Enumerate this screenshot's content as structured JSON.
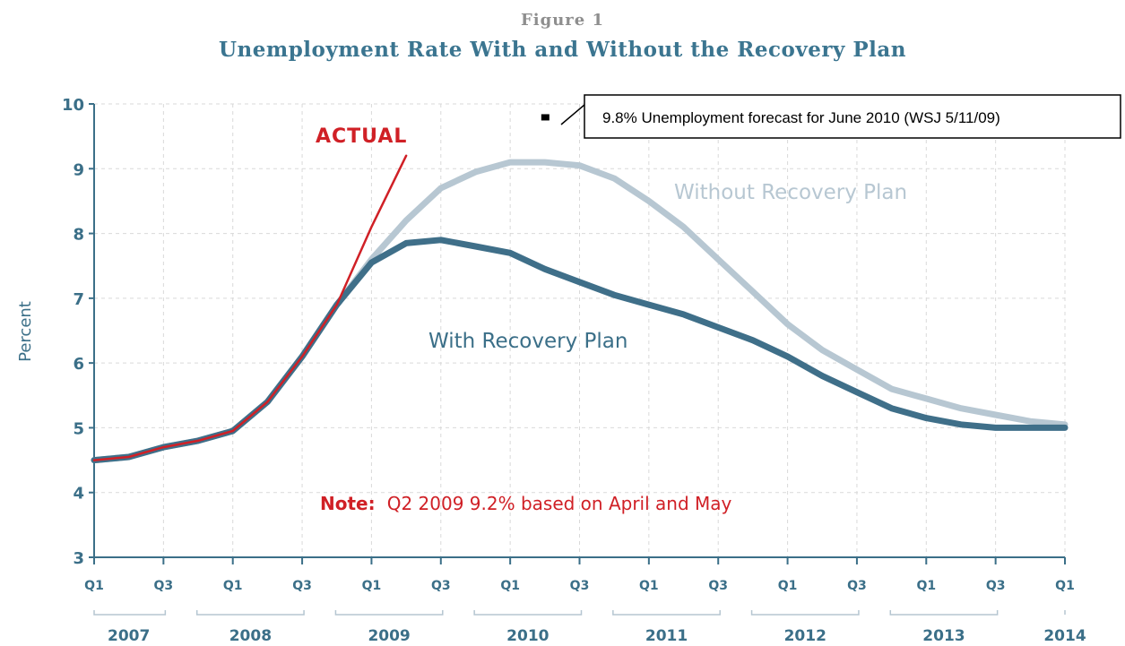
{
  "figure_label": "Figure 1",
  "chart_data": {
    "type": "line",
    "title": "Unemployment Rate With and Without the Recovery Plan",
    "ylabel": "Percent",
    "xlabel": "",
    "ylim": [
      3,
      10
    ],
    "yticks": [
      3,
      4,
      5,
      6,
      7,
      8,
      9,
      10
    ],
    "grid": true,
    "x_quarter_labels": [
      "Q1",
      "Q3",
      "Q1",
      "Q3",
      "Q1",
      "Q3",
      "Q1",
      "Q3",
      "Q1",
      "Q3",
      "Q1",
      "Q3",
      "Q1",
      "Q3",
      "Q1"
    ],
    "x_year_labels": [
      "2007",
      "2008",
      "2009",
      "2010",
      "2011",
      "2012",
      "2013",
      "2014"
    ],
    "series": [
      {
        "name": "Without Recovery Plan",
        "color": "#b7c7d2",
        "x": [
          2007.0,
          2007.25,
          2007.5,
          2007.75,
          2008.0,
          2008.25,
          2008.5,
          2008.75,
          2009.0,
          2009.25,
          2009.5,
          2009.75,
          2010.0,
          2010.25,
          2010.5,
          2010.75,
          2011.0,
          2011.25,
          2011.5,
          2011.75,
          2012.0,
          2012.25,
          2012.5,
          2012.75,
          2013.0,
          2013.25,
          2013.5,
          2013.75,
          2014.0
        ],
        "values": [
          4.5,
          4.55,
          4.7,
          4.8,
          4.95,
          5.4,
          6.1,
          6.9,
          7.6,
          8.2,
          8.7,
          8.95,
          9.1,
          9.1,
          9.05,
          8.85,
          8.5,
          8.1,
          7.6,
          7.1,
          6.6,
          6.2,
          5.9,
          5.6,
          5.45,
          5.3,
          5.2,
          5.1,
          5.05
        ]
      },
      {
        "name": "With Recovery Plan",
        "color": "#3f6f89",
        "x": [
          2007.0,
          2007.25,
          2007.5,
          2007.75,
          2008.0,
          2008.25,
          2008.5,
          2008.75,
          2009.0,
          2009.25,
          2009.5,
          2009.75,
          2010.0,
          2010.25,
          2010.5,
          2010.75,
          2011.0,
          2011.25,
          2011.5,
          2011.75,
          2012.0,
          2012.25,
          2012.5,
          2012.75,
          2013.0,
          2013.25,
          2013.5,
          2013.75,
          2014.0
        ],
        "values": [
          4.5,
          4.55,
          4.7,
          4.8,
          4.95,
          5.4,
          6.1,
          6.9,
          7.55,
          7.85,
          7.9,
          7.8,
          7.7,
          7.45,
          7.25,
          7.05,
          6.9,
          6.75,
          6.55,
          6.35,
          6.1,
          5.8,
          5.55,
          5.3,
          5.15,
          5.05,
          5.0,
          5.0,
          5.0
        ]
      },
      {
        "name": "ACTUAL",
        "color": "#d02026",
        "x": [
          2007.0,
          2007.25,
          2007.5,
          2007.75,
          2008.0,
          2008.25,
          2008.5,
          2008.75,
          2009.0,
          2009.25
        ],
        "values": [
          4.5,
          4.55,
          4.7,
          4.8,
          4.95,
          5.4,
          6.1,
          6.9,
          8.1,
          9.2
        ]
      }
    ],
    "annotations": {
      "actual_label": "ACTUAL",
      "with_label": "With Recovery Plan",
      "without_label": "Without Recovery Plan",
      "note_bold": "Note:",
      "note_text": "Q2 2009 9.2% based on April and May",
      "callout": "9.8% Unemployment forecast for June 2010 (WSJ 5/11/09)",
      "callout_point": {
        "x": 2010.25,
        "y": 9.8
      }
    }
  }
}
